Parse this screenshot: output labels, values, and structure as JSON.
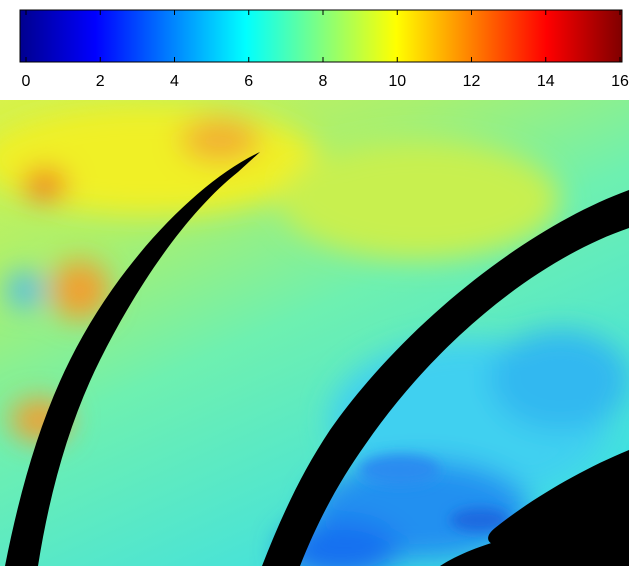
{
  "chart_data": {
    "type": "colorbar",
    "colormap": "jet",
    "xlim": [
      0,
      16
    ],
    "xticks": [
      0,
      2,
      4,
      6,
      8,
      10,
      12,
      14,
      16
    ]
  }
}
